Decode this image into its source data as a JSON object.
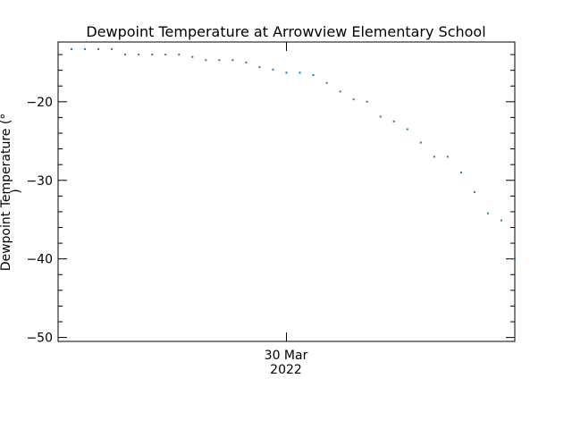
{
  "chart_data": {
    "type": "scatter",
    "title": "Dewpoint Temperature at Arrowview Elementary School",
    "ylabel_line1": "Dewpoint Temperature (°",
    "ylabel_line2": ")",
    "xtick_label_line1": "30 Mar",
    "xtick_label_line2": "2022",
    "ylim": [
      -50.5,
      -12.4
    ],
    "xlim": [
      0,
      34
    ],
    "yticks_major": [
      -50,
      -40,
      -30,
      -20
    ],
    "ytick_labels": [
      "−50",
      "−40",
      "−30",
      "−20"
    ],
    "yticks_minor_step": 2,
    "xtick_major_position": 17,
    "grid": false,
    "point_color": "#1f77b4",
    "series": [
      {
        "x": [
          1,
          2,
          3,
          4,
          5,
          6,
          7,
          8,
          9,
          10,
          11,
          12,
          13,
          14,
          15,
          16,
          17,
          18,
          19,
          20,
          21,
          22,
          23,
          24,
          25,
          26,
          27,
          28,
          29,
          30,
          31,
          32,
          33
        ],
        "values": [
          -13.3,
          -13.3,
          -13.3,
          -13.3,
          -14.0,
          -14.0,
          -14.0,
          -14.0,
          -14.0,
          -14.3,
          -14.7,
          -14.7,
          -14.7,
          -15.0,
          -15.6,
          -15.9,
          -16.3,
          -16.3,
          -16.6,
          -17.6,
          -18.7,
          -19.7,
          -20.0,
          -21.9,
          -22.5,
          -23.5,
          -25.2,
          -27.0,
          -27.0,
          -29.0,
          -31.5,
          -34.2,
          -35.1
        ],
        "extra_point": {
          "x": 34,
          "y": -40.0
        }
      }
    ]
  }
}
